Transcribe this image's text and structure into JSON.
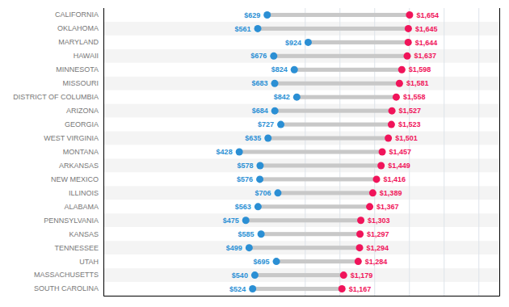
{
  "chart_data": {
    "type": "dumbbell",
    "orientation": "horizontal",
    "categories": [
      "CALIFORNIA",
      "OKLAHOMA",
      "MARYLAND",
      "HAWAII",
      "MINNESOTA",
      "MISSOURI",
      "DISTRICT OF COLUMBIA",
      "ARIZONA",
      "GEORGIA",
      "WEST VIRGINIA",
      "MONTANA",
      "ARKANSAS",
      "NEW MEXICO",
      "ILLINOIS",
      "ALABAMA",
      "PENNSYLVANIA",
      "KANSAS",
      "TENNESSEE",
      "UTAH",
      "MASSACHUSETTS",
      "SOUTH CAROLINA"
    ],
    "series": [
      {
        "color": "#2b8fd4",
        "values": [
          629,
          561,
          924,
          676,
          824,
          683,
          842,
          684,
          727,
          635,
          428,
          578,
          576,
          706,
          563,
          475,
          585,
          499,
          695,
          540,
          524
        ],
        "value_labels": [
          "$629",
          "$561",
          "$924",
          "$676",
          "$824",
          "$683",
          "$842",
          "$684",
          "$727",
          "$635",
          "$428",
          "$578",
          "$576",
          "$706",
          "$563",
          "$475",
          "$585",
          "$499",
          "$695",
          "$540",
          "$524"
        ]
      },
      {
        "color": "#f0145a",
        "values": [
          1654,
          1645,
          1644,
          1637,
          1598,
          1581,
          1558,
          1527,
          1523,
          1501,
          1457,
          1449,
          1416,
          1389,
          1367,
          1303,
          1297,
          1294,
          1284,
          1179,
          1167
        ],
        "value_labels": [
          "$1,654",
          "$1,645",
          "$1,644",
          "$1,637",
          "$1,598",
          "$1,581",
          "$1,558",
          "$1,527",
          "$1,523",
          "$1,501",
          "$1,457",
          "$1,449",
          "$1,416",
          "$1,389",
          "$1,367",
          "$1,303",
          "$1,297",
          "$1,294",
          "$1,284",
          "$1,179",
          "$1,167"
        ]
      }
    ],
    "color": "#c8c8c8",
    "xlim": [
      -550,
      2300
    ],
    "xticks": [
      900,
      1150,
      1400,
      1650,
      1900,
      2150
    ],
    "grid": true,
    "tick_labels": "y",
    "data_labels": true
  }
}
